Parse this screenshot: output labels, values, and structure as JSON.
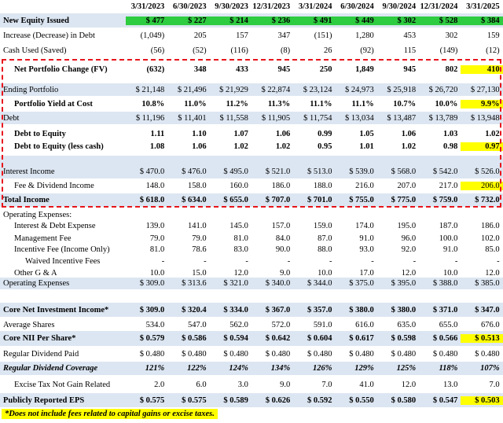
{
  "columns": [
    "3/31/2023",
    "6/30/2023",
    "9/30/2023",
    "12/31/2023",
    "3/31/2024",
    "6/30/2024",
    "9/30/2024",
    "12/31/2024",
    "3/31/2025"
  ],
  "rows": [
    {
      "label": "New Equity Issued",
      "values": [
        "$ 477",
        "$ 227",
        "$ 214",
        "$ 236",
        "$ 491",
        "$ 449",
        "$ 302",
        "$ 528",
        "$ 384"
      ],
      "style": "green-bold"
    },
    {
      "label": "Increase (Decrease) in Debt",
      "values": [
        "(1,049)",
        "205",
        "157",
        "347",
        "(151)",
        "1,280",
        "453",
        "302",
        "159"
      ],
      "style": "plain"
    },
    {
      "label": "Cash Used (Saved)",
      "values": [
        "(56)",
        "(52)",
        "(116)",
        "(8)",
        "26",
        "(92)",
        "115",
        "(149)",
        "(12)"
      ],
      "style": "plain"
    },
    {
      "label": "Net Portfolio Change (FV)",
      "values": [
        "(632)",
        "348",
        "433",
        "945",
        "250",
        "1,849",
        "945",
        "802",
        "410"
      ],
      "style": "bold-indent",
      "hl": [
        8
      ]
    },
    {
      "label": "Ending Portfolio",
      "values": [
        "$ 21,148",
        "$ 21,496",
        "$ 21,929",
        "$ 22,874",
        "$ 23,124",
        "$ 24,973",
        "$ 25,918",
        "$ 26,720",
        "$ 27,130"
      ],
      "style": "blue"
    },
    {
      "label": "Portfolio Yield at Cost",
      "values": [
        "10.8%",
        "11.0%",
        "11.2%",
        "11.3%",
        "11.1%",
        "11.1%",
        "10.7%",
        "10.0%",
        "9.9%"
      ],
      "style": "bold-indent",
      "hl": [
        8
      ]
    },
    {
      "label": "Debt",
      "values": [
        "$ 11,196",
        "$ 11,401",
        "$ 11,558",
        "$ 11,905",
        "$ 11,754",
        "$ 13,034",
        "$ 13,487",
        "$ 13,789",
        "$ 13,948"
      ],
      "style": "blue"
    },
    {
      "label": "Debt to Equity",
      "values": [
        "1.11",
        "1.10",
        "1.07",
        "1.06",
        "0.99",
        "1.05",
        "1.06",
        "1.03",
        "1.02"
      ],
      "style": "bold-indent"
    },
    {
      "label": "Debt to Equity (less cash)",
      "values": [
        "1.08",
        "1.06",
        "1.02",
        "1.02",
        "0.95",
        "1.01",
        "1.02",
        "0.98",
        "0.97"
      ],
      "style": "bold-indent",
      "hl": [
        8
      ]
    },
    {
      "label": "",
      "values": [
        "",
        "",
        "",
        "",
        "",
        "",
        "",
        "",
        ""
      ],
      "style": "blue-empty"
    },
    {
      "label": "Interest Income",
      "values": [
        "$ 470.0",
        "$ 476.0",
        "$ 495.0",
        "$ 521.0",
        "$ 513.0",
        "$ 539.0",
        "$ 568.0",
        "$ 542.0",
        "$ 526.0"
      ],
      "style": "blue"
    },
    {
      "label": "Fee & Dividend Income",
      "values": [
        "148.0",
        "158.0",
        "160.0",
        "186.0",
        "188.0",
        "216.0",
        "207.0",
        "217.0",
        "206.0"
      ],
      "style": "indent",
      "hl": [
        8
      ]
    },
    {
      "label": "Total Income",
      "values": [
        "$ 618.0",
        "$ 634.0",
        "$ 655.0",
        "$ 707.0",
        "$ 701.0",
        "$ 755.0",
        "$ 775.0",
        "$ 759.0",
        "$ 732.0"
      ],
      "style": "blue-bold"
    },
    {
      "label": "Operating Expenses:",
      "values": [
        "",
        "",
        "",
        "",
        "",
        "",
        "",
        "",
        ""
      ],
      "style": "plain"
    },
    {
      "label": "Interest & Debt Expense",
      "values": [
        "139.0",
        "141.0",
        "145.0",
        "157.0",
        "159.0",
        "174.0",
        "195.0",
        "187.0",
        "186.0"
      ],
      "style": "indent"
    },
    {
      "label": "Management Fee",
      "values": [
        "79.0",
        "79.0",
        "81.0",
        "84.0",
        "87.0",
        "91.0",
        "96.0",
        "100.0",
        "102.0"
      ],
      "style": "indent"
    },
    {
      "label": "Incentive Fee (Income Only)",
      "values": [
        "81.0",
        "78.6",
        "83.0",
        "90.0",
        "88.0",
        "93.0",
        "92.0",
        "91.0",
        "85.0"
      ],
      "style": "indent"
    },
    {
      "label": "Waived Incentive Fees",
      "values": [
        "-",
        "-",
        "-",
        "-",
        "-",
        "-",
        "-",
        "-",
        "-"
      ],
      "style": "indent2"
    },
    {
      "label": "Other G & A",
      "values": [
        "10.0",
        "15.0",
        "12.0",
        "9.0",
        "10.0",
        "17.0",
        "12.0",
        "10.0",
        "12.0"
      ],
      "style": "indent"
    },
    {
      "label": "Operating Expenses",
      "values": [
        "$ 309.0",
        "$ 313.6",
        "$ 321.0",
        "$ 340.0",
        "$ 344.0",
        "$ 375.0",
        "$ 395.0",
        "$ 388.0",
        "$ 385.0"
      ],
      "style": "blue"
    },
    {
      "label": "",
      "values": [
        "",
        "",
        "",
        "",
        "",
        "",
        "",
        "",
        ""
      ],
      "style": "plain"
    },
    {
      "label": "Core Net Investment Income*",
      "values": [
        "$ 309.0",
        "$ 320.4",
        "$ 334.0",
        "$ 367.0",
        "$ 357.0",
        "$ 380.0",
        "$ 380.0",
        "$ 371.0",
        "$ 347.0"
      ],
      "style": "blue-bold"
    },
    {
      "label": "Average Shares",
      "values": [
        "534.0",
        "547.0",
        "562.0",
        "572.0",
        "591.0",
        "616.0",
        "635.0",
        "655.0",
        "676.0"
      ],
      "style": "plain"
    },
    {
      "label": "Core NII Per Share*",
      "values": [
        "$ 0.579",
        "$ 0.586",
        "$ 0.594",
        "$ 0.642",
        "$ 0.604",
        "$ 0.617",
        "$ 0.598",
        "$ 0.566",
        "$ 0.513"
      ],
      "style": "blue-bold",
      "hl": [
        8
      ]
    },
    {
      "label": "Regular Dividend Paid",
      "values": [
        "$ 0.480",
        "$ 0.480",
        "$ 0.480",
        "$ 0.480",
        "$ 0.480",
        "$ 0.480",
        "$ 0.480",
        "$ 0.480",
        "$ 0.480"
      ],
      "style": "plain"
    },
    {
      "label": "Regular Dividend Coverage",
      "values": [
        "121%",
        "122%",
        "124%",
        "134%",
        "126%",
        "129%",
        "125%",
        "118%",
        "107%"
      ],
      "style": "blue-bolditalic"
    },
    {
      "label": "Excise Tax Not Gain Related",
      "values": [
        "2.0",
        "6.0",
        "3.0",
        "9.0",
        "7.0",
        "41.0",
        "12.0",
        "13.0",
        "7.0"
      ],
      "style": "indent"
    },
    {
      "label": "Publicly Reported EPS",
      "values": [
        "$ 0.575",
        "$ 0.575",
        "$ 0.589",
        "$ 0.626",
        "$ 0.592",
        "$ 0.550",
        "$ 0.580",
        "$ 0.547",
        "$ 0.503"
      ],
      "style": "blue-bold",
      "hl": [
        8
      ]
    }
  ],
  "footnote": "*Does not include fees related to capital gains or excise taxes."
}
